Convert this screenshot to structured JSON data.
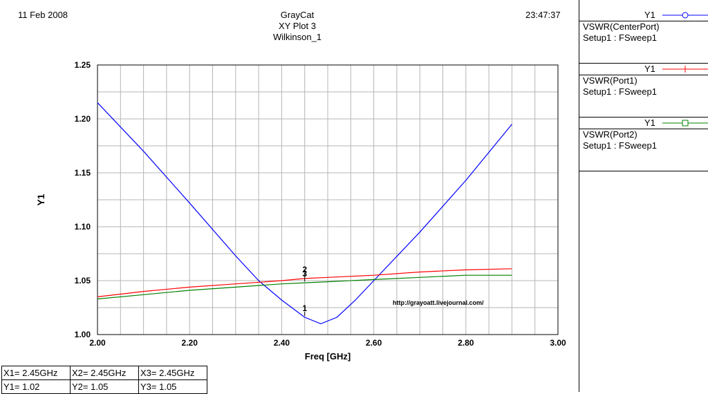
{
  "header": {
    "date": "11 Feb 2008",
    "time": "23:47:37",
    "title_lines": [
      "GrayCat",
      "XY Plot 3",
      "Wilkinson_1"
    ]
  },
  "chart_data": {
    "type": "line",
    "xlabel": "Freq [GHz]",
    "ylabel": "Y1",
    "xlim": [
      2.0,
      3.0
    ],
    "ylim": [
      1.0,
      1.25
    ],
    "x_ticks": [
      "2.00",
      "2.20",
      "2.40",
      "2.60",
      "2.80",
      "3.00"
    ],
    "y_ticks": [
      "1.00",
      "1.05",
      "1.10",
      "1.15",
      "1.20",
      "1.25"
    ],
    "grid": true,
    "series": [
      {
        "name": "VSWR(CenterPort)",
        "color": "#0000ff",
        "x": [
          2.0,
          2.1,
          2.2,
          2.3,
          2.35,
          2.4,
          2.45,
          2.485,
          2.52,
          2.56,
          2.6,
          2.7,
          2.8,
          2.9
        ],
        "y": [
          1.215,
          1.17,
          1.122,
          1.073,
          1.05,
          1.032,
          1.016,
          1.01,
          1.016,
          1.032,
          1.05,
          1.095,
          1.143,
          1.195
        ]
      },
      {
        "name": "VSWR(Port1)",
        "color": "#ff0000",
        "x": [
          2.0,
          2.1,
          2.2,
          2.3,
          2.4,
          2.45,
          2.5,
          2.6,
          2.7,
          2.8,
          2.9
        ],
        "y": [
          1.035,
          1.04,
          1.044,
          1.047,
          1.05,
          1.052,
          1.053,
          1.055,
          1.058,
          1.06,
          1.061
        ]
      },
      {
        "name": "VSWR(Port2)",
        "color": "#008000",
        "x": [
          2.0,
          2.1,
          2.2,
          2.3,
          2.4,
          2.45,
          2.5,
          2.6,
          2.7,
          2.8,
          2.9
        ],
        "y": [
          1.033,
          1.037,
          1.041,
          1.044,
          1.047,
          1.048,
          1.049,
          1.051,
          1.053,
          1.055,
          1.055
        ]
      }
    ],
    "marker_points": [
      {
        "label": "1",
        "x": 2.45,
        "y": 1.016
      },
      {
        "label": "2",
        "x": 2.45,
        "y": 1.052
      },
      {
        "label": "3",
        "x": 2.45,
        "y": 1.048
      }
    ],
    "annotation": "http://grayoatt.livejournal.com/"
  },
  "legend": [
    {
      "axis": "Y1",
      "trace": "VSWR(CenterPort)",
      "setup": "Setup1 : FSweep1",
      "color": "#0000ff",
      "symbol": "circle-icon"
    },
    {
      "axis": "Y1",
      "trace": "VSWR(Port1)",
      "setup": "Setup1 : FSweep1",
      "color": "#ff0000",
      "symbol": "plus-icon"
    },
    {
      "axis": "Y1",
      "trace": "VSWR(Port2)",
      "setup": "Setup1 : FSweep1",
      "color": "#008000",
      "symbol": "square-icon"
    }
  ],
  "markers_table": [
    {
      "x": "X1= 2.45GHz",
      "y": "Y1= 1.02"
    },
    {
      "x": "X2= 2.45GHz",
      "y": "Y2= 1.05"
    },
    {
      "x": "X3= 2.45GHz",
      "y": "Y3= 1.05"
    }
  ]
}
